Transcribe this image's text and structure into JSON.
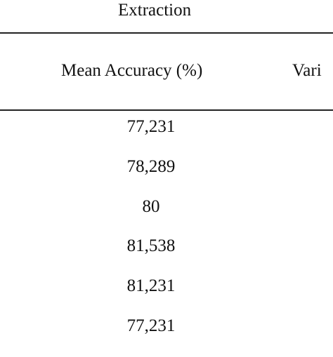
{
  "table": {
    "group_header": "Extraction",
    "columns": [
      "Mean Accuracy (%)",
      "Vari"
    ],
    "rows": [
      {
        "mean_accuracy": "77,231"
      },
      {
        "mean_accuracy": "78,289"
      },
      {
        "mean_accuracy": "80"
      },
      {
        "mean_accuracy": "81,538"
      },
      {
        "mean_accuracy": "81,231"
      },
      {
        "mean_accuracy": "77,231"
      }
    ]
  }
}
